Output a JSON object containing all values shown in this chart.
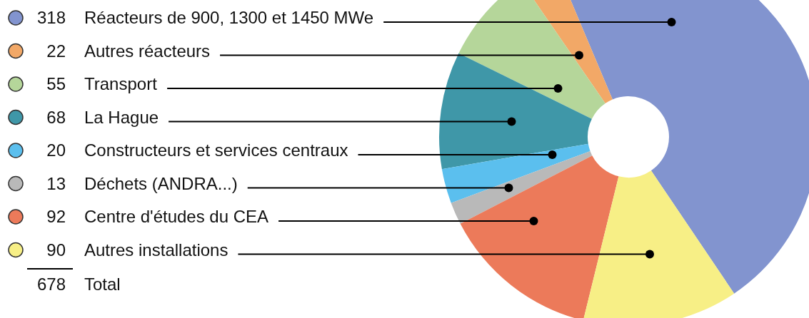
{
  "chart_data": {
    "type": "donut",
    "categories": [
      "Réacteurs de 900, 1300 et 1450 MWe",
      "Autres réacteurs",
      "Transport",
      "La Hague",
      "Constructeurs et services centraux",
      "Déchets (ANDRA...)",
      "Centre d'études du CEA",
      "Autres installations"
    ],
    "values": [
      318,
      22,
      55,
      68,
      20,
      13,
      92,
      90
    ],
    "colors": [
      "#8294cf",
      "#f2a867",
      "#b5d69a",
      "#3f97a8",
      "#5bbfee",
      "#b9b9b9",
      "#ec7a5a",
      "#f7ef86"
    ],
    "data_labels": true,
    "totals": [
      "678"
    ],
    "annotations": [
      "Total"
    ]
  }
}
